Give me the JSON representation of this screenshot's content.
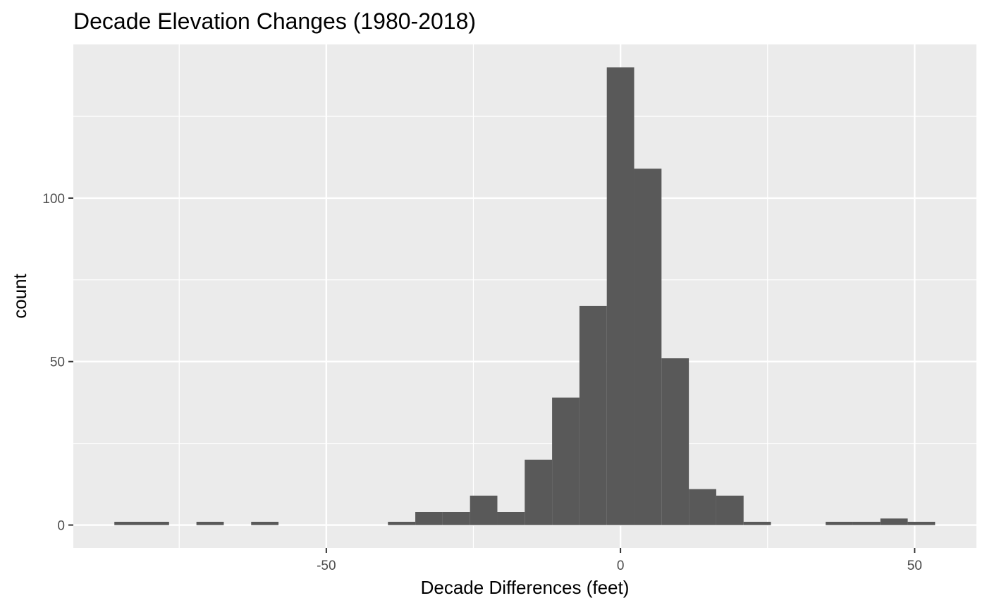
{
  "chart_data": {
    "type": "bar",
    "title": "Decade Elevation Changes (1980-2018)",
    "xlabel": "Decade Differences (feet)",
    "ylabel": "count",
    "xlim": [
      -93,
      60.5
    ],
    "ylim": [
      -7,
      147
    ],
    "x_ticks": [
      -50,
      0,
      50
    ],
    "x_minor": [
      -75,
      -25,
      25
    ],
    "y_ticks": [
      0,
      50,
      100
    ],
    "y_minor": [
      25,
      75,
      125
    ],
    "bin_width": 4.65,
    "bins": [
      {
        "x": -83.7,
        "count": 1
      },
      {
        "x": -79.05,
        "count": 1
      },
      {
        "x": -69.75,
        "count": 1
      },
      {
        "x": -60.45,
        "count": 1
      },
      {
        "x": -37.2,
        "count": 1
      },
      {
        "x": -32.55,
        "count": 4
      },
      {
        "x": -27.9,
        "count": 4
      },
      {
        "x": -23.25,
        "count": 9
      },
      {
        "x": -18.6,
        "count": 4
      },
      {
        "x": -13.95,
        "count": 20
      },
      {
        "x": -9.3,
        "count": 39
      },
      {
        "x": -4.65,
        "count": 67
      },
      {
        "x": 0,
        "count": 140
      },
      {
        "x": 4.65,
        "count": 109
      },
      {
        "x": 9.3,
        "count": 51
      },
      {
        "x": 13.95,
        "count": 11
      },
      {
        "x": 18.6,
        "count": 9
      },
      {
        "x": 23.25,
        "count": 1
      },
      {
        "x": 37.2,
        "count": 1
      },
      {
        "x": 41.85,
        "count": 1
      },
      {
        "x": 46.5,
        "count": 2
      },
      {
        "x": 51.15,
        "count": 1
      }
    ],
    "bar_color": "#595959",
    "panel_color": "#ebebeb",
    "grid": true,
    "legend": "none"
  }
}
